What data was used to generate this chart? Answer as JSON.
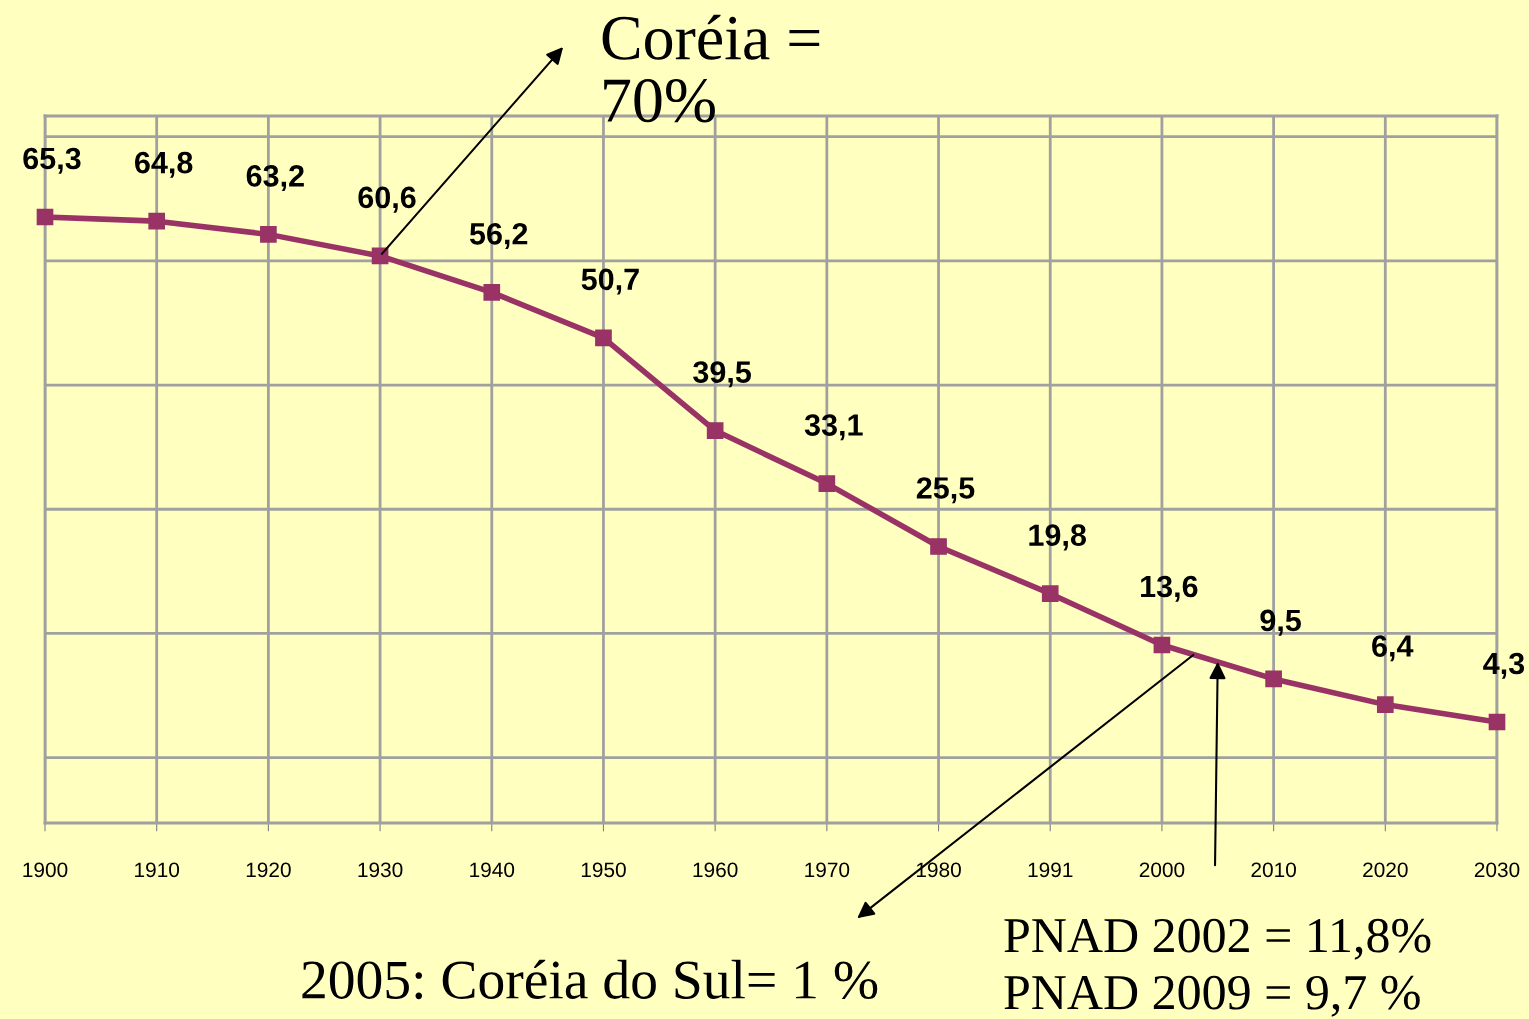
{
  "chart_data": {
    "type": "line",
    "categories": [
      "1900",
      "1910",
      "1920",
      "1930",
      "1940",
      "1950",
      "1960",
      "1970",
      "1980",
      "1991",
      "2000",
      "2010",
      "2020",
      "2030"
    ],
    "values": [
      65.3,
      64.8,
      63.2,
      60.6,
      56.2,
      50.7,
      39.5,
      33.1,
      25.5,
      19.8,
      13.6,
      9.5,
      6.4,
      4.3
    ],
    "color": "#993366",
    "marker": "square",
    "line_style": "solid",
    "value_labels": [
      "65,3",
      "64,8",
      "63,2",
      "60,6",
      "56,2",
      "50,7",
      "39,5",
      "33,1",
      "25,5",
      "19,8",
      "13,6",
      "9,5",
      "6,4",
      "4,3"
    ],
    "tick_labels": "x",
    "grid": true,
    "annotations": [
      "Coréia =\n70%",
      "2005: Coréia do Sul= 1 %",
      "PNAD 2002 = 11,8%",
      "PNAD 2009 = 9,7 %"
    ]
  }
}
